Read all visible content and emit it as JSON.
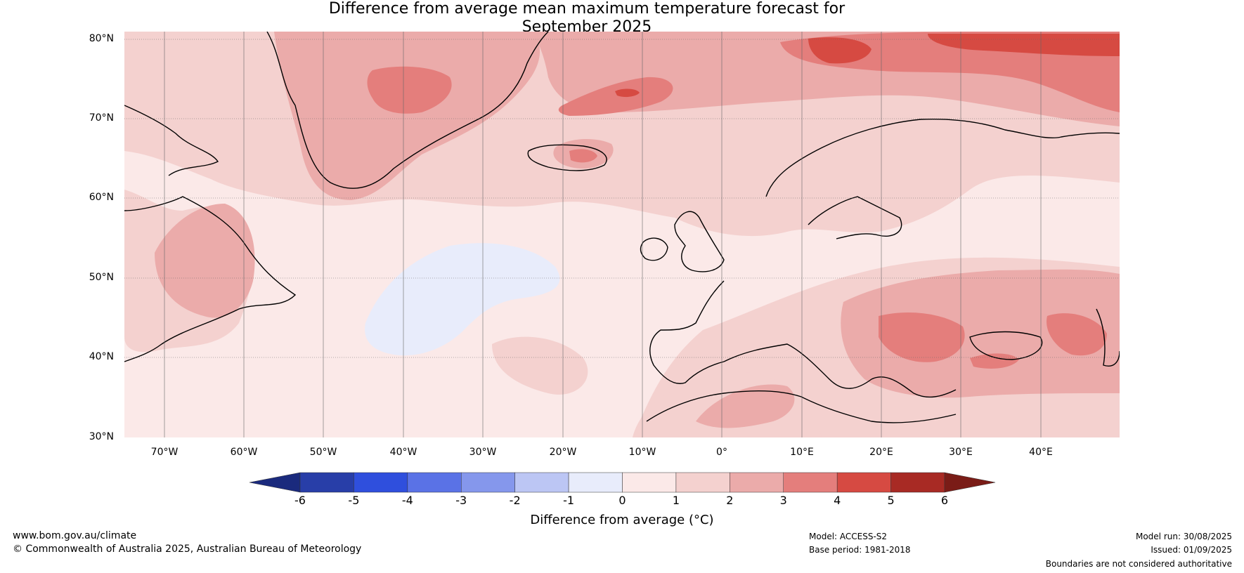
{
  "title": {
    "line1": "Difference from average mean maximum temperature forecast for",
    "line2": "September 2025"
  },
  "map": {
    "type": "contour-map",
    "region": "North Atlantic and Europe",
    "lat_range": [
      30,
      80
    ],
    "lon_range": [
      -75,
      50
    ],
    "lat_labels": [
      "80°N",
      "70°N",
      "60°N",
      "50°N",
      "40°N",
      "30°N"
    ],
    "lon_labels": [
      "70°W",
      "60°W",
      "50°W",
      "40°W",
      "30°W",
      "20°W",
      "10°W",
      "0°",
      "10°E",
      "20°E",
      "30°E",
      "40°E"
    ],
    "gridlines": true
  },
  "colorbar": {
    "ticks": [
      "-6",
      "-5",
      "-4",
      "-3",
      "-2",
      "-1",
      "0",
      "1",
      "2",
      "3",
      "4",
      "5",
      "6"
    ],
    "colors": [
      "#283ea8",
      "#2f4fdd",
      "#5a72e6",
      "#8597ec",
      "#bcc6f4",
      "#e8ecfb",
      "#fbe9e8",
      "#f4d1cf",
      "#ebabaa",
      "#e47e7c",
      "#d64a42",
      "#a82a24"
    ],
    "extend_low_color": "#1a2a7d",
    "extend_high_color": "#7a1c17",
    "label": "Difference from average (°C)"
  },
  "footer": {
    "website": "www.bom.gov.au/climate",
    "copyright": "© Commonwealth of Australia 2025, Australian Bureau of Meteorology",
    "model": "Model: ACCESS-S2",
    "base_period": "Base period: 1981-2018",
    "model_run": "Model run: 30/08/2025",
    "issued": "Issued: 01/09/2025",
    "disclaimer": "Boundaries are not considered authoritative"
  }
}
